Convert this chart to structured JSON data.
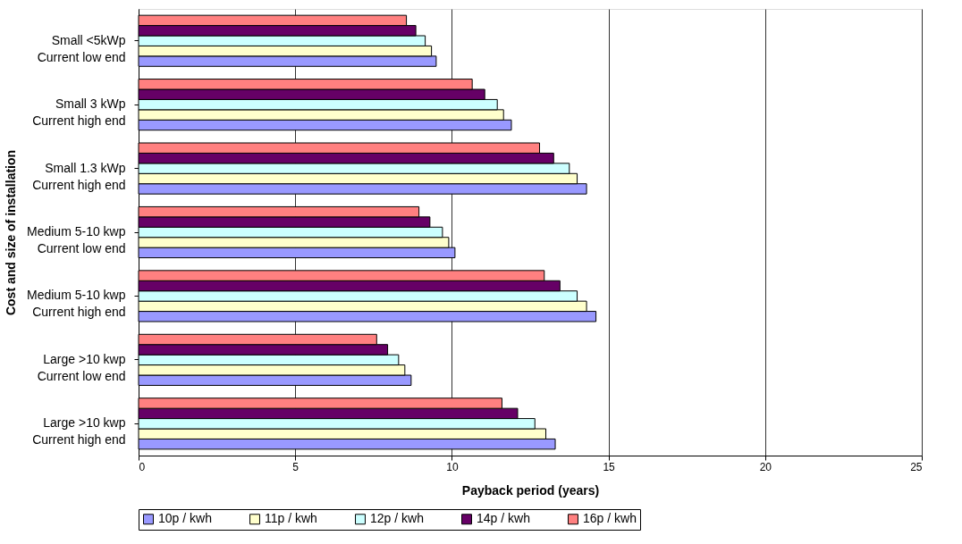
{
  "chart_data": {
    "type": "bar",
    "orientation": "horizontal",
    "xlabel": "Payback period (years)",
    "ylabel": "Cost and size of installation",
    "categories": [
      "Small <5kWp\nCurrent low end",
      "Small 3 kWp\nCurrent high end",
      "Small 1.3 kWp\nCurrent high end",
      "Medium 5-10 kwp\nCurrent low end",
      "Medium 5-10 kwp\nCurrent high end",
      "Large >10 kwp\nCurrent low end",
      "Large >10 kwp\nCurrent high end"
    ],
    "series": [
      {
        "name": "10p / kwh",
        "color": "#9999ff",
        "values": [
          9.5,
          11.9,
          14.3,
          10.1,
          14.6,
          8.7,
          13.3
        ]
      },
      {
        "name": "11p / kwh",
        "color": "#ffffcc",
        "values": [
          9.35,
          11.65,
          14.0,
          9.9,
          14.3,
          8.5,
          13.0
        ]
      },
      {
        "name": "12p / kwh",
        "color": "#ccffff",
        "values": [
          9.15,
          11.45,
          13.75,
          9.7,
          14.0,
          8.3,
          12.65
        ]
      },
      {
        "name": "14p / kwh",
        "color": "#660066",
        "values": [
          8.85,
          11.05,
          13.25,
          9.3,
          13.45,
          7.95,
          12.1
        ]
      },
      {
        "name": "16p / kwh",
        "color": "#ff8080",
        "values": [
          8.55,
          10.65,
          12.8,
          8.95,
          12.95,
          7.6,
          11.6
        ]
      }
    ],
    "xlim": [
      0,
      25
    ],
    "xticks": [
      0,
      5,
      10,
      15,
      20,
      25
    ],
    "grid": "x",
    "legend": "bottom"
  }
}
